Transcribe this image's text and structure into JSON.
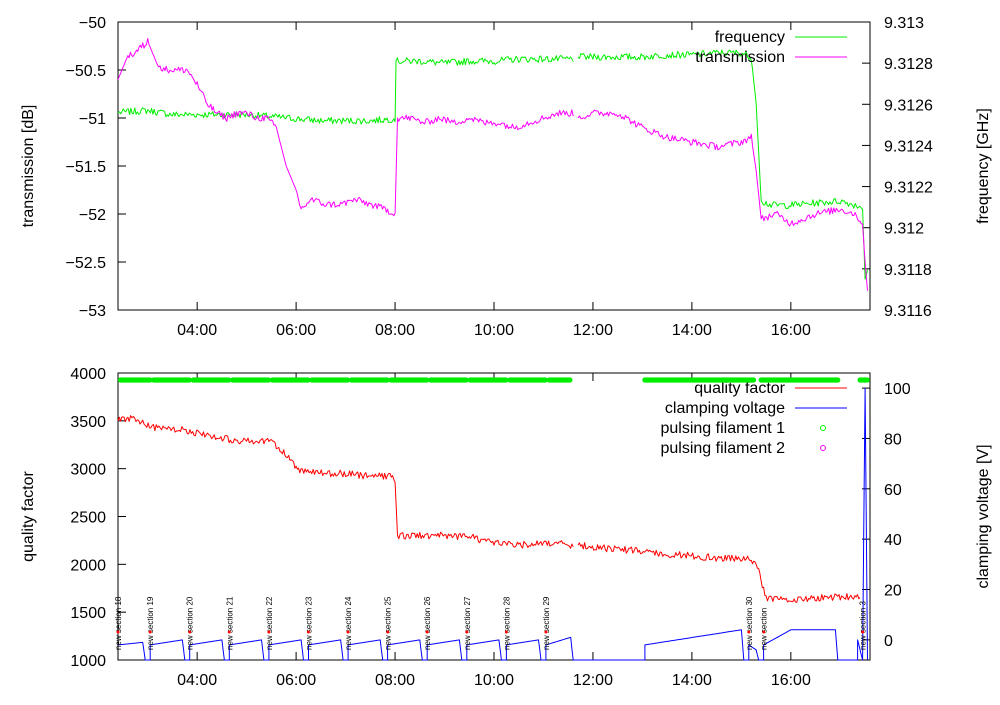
{
  "chart_data": [
    {
      "type": "line",
      "title": "",
      "xlabel": "",
      "x_ticks": [
        "04:00",
        "06:00",
        "08:00",
        "10:00",
        "12:00",
        "14:00",
        "16:00"
      ],
      "x_tick_hours": [
        4,
        6,
        8,
        10,
        12,
        14,
        16
      ],
      "x_range_hours": [
        2.4,
        17.6
      ],
      "ylabel_left": "transmission [dB]",
      "ylim_left": [
        -53,
        -50
      ],
      "yticks_left": [
        "-50",
        "-50.5",
        "-51",
        "-51.5",
        "-52",
        "-52.5",
        "-53"
      ],
      "ylabel_right": "frequency [GHz]",
      "ylim_right": [
        9.3116,
        9.313
      ],
      "yticks_right": [
        "9.313",
        "9.3128",
        "9.3126",
        "9.3124",
        "9.3122",
        "9.312",
        "9.3118",
        "9.3116"
      ],
      "legend_position": "top-right",
      "series": [
        {
          "name": "frequency",
          "axis": "right",
          "color": "#00ee00",
          "points": [
            [
              2.4,
              9.31256
            ],
            [
              3.0,
              9.31257
            ],
            [
              3.5,
              9.31255
            ],
            [
              4.0,
              9.31255
            ],
            [
              4.5,
              9.31255
            ],
            [
              5.0,
              9.31255
            ],
            [
              5.5,
              9.31254
            ],
            [
              6.0,
              9.31253
            ],
            [
              6.5,
              9.31252
            ],
            [
              7.0,
              9.31252
            ],
            [
              7.5,
              9.31252
            ],
            [
              8.0,
              9.31253
            ],
            [
              8.02,
              9.31281
            ],
            [
              8.5,
              9.31281
            ],
            [
              9.0,
              9.3128
            ],
            [
              9.5,
              9.31281
            ],
            [
              10.0,
              9.31281
            ],
            [
              10.5,
              9.31282
            ],
            [
              11.0,
              9.31282
            ],
            [
              11.6,
              9.31282
            ],
            [
              null,
              null
            ],
            [
              11.7,
              9.31283
            ],
            [
              12.0,
              9.31283
            ],
            [
              12.5,
              9.31283
            ],
            [
              13.0,
              9.31283
            ],
            [
              13.5,
              9.31284
            ],
            [
              14.0,
              9.31284
            ],
            [
              14.5,
              9.31285
            ],
            [
              15.0,
              9.31285
            ],
            [
              15.2,
              9.31283
            ],
            [
              15.3,
              9.3126
            ],
            [
              15.4,
              9.31213
            ],
            [
              15.6,
              9.31211
            ],
            [
              16.0,
              9.31211
            ],
            [
              16.5,
              9.31212
            ],
            [
              17.0,
              9.31213
            ],
            [
              17.3,
              9.31211
            ],
            [
              17.45,
              9.3121
            ],
            [
              17.5,
              9.31175
            ],
            [
              17.55,
              9.3118
            ]
          ]
        },
        {
          "name": "transmission",
          "axis": "left",
          "color": "#ff00ff",
          "points": [
            [
              2.4,
              -50.6
            ],
            [
              2.6,
              -50.35
            ],
            [
              2.8,
              -50.3
            ],
            [
              3.0,
              -50.2
            ],
            [
              3.2,
              -50.45
            ],
            [
              3.4,
              -50.5
            ],
            [
              3.6,
              -50.5
            ],
            [
              3.8,
              -50.5
            ],
            [
              4.0,
              -50.65
            ],
            [
              4.2,
              -50.85
            ],
            [
              4.4,
              -50.95
            ],
            [
              4.6,
              -51.0
            ],
            [
              4.8,
              -50.95
            ],
            [
              5.0,
              -50.95
            ],
            [
              5.2,
              -51.0
            ],
            [
              5.4,
              -51.0
            ],
            [
              5.6,
              -51.1
            ],
            [
              5.8,
              -51.5
            ],
            [
              6.0,
              -51.75
            ],
            [
              6.1,
              -51.95
            ],
            [
              6.3,
              -51.85
            ],
            [
              6.6,
              -51.9
            ],
            [
              6.9,
              -51.9
            ],
            [
              7.2,
              -51.85
            ],
            [
              7.5,
              -51.9
            ],
            [
              7.8,
              -51.95
            ],
            [
              8.0,
              -52.0
            ],
            [
              8.05,
              -51.0
            ],
            [
              8.3,
              -51.0
            ],
            [
              8.6,
              -51.05
            ],
            [
              8.9,
              -51.0
            ],
            [
              9.2,
              -51.05
            ],
            [
              9.5,
              -51.0
            ],
            [
              9.8,
              -51.05
            ],
            [
              10.1,
              -51.05
            ],
            [
              10.4,
              -51.1
            ],
            [
              10.7,
              -51.05
            ],
            [
              11.0,
              -51.0
            ],
            [
              11.3,
              -50.95
            ],
            [
              11.6,
              -50.95
            ],
            [
              null,
              null
            ],
            [
              11.7,
              -51.0
            ],
            [
              12.0,
              -50.95
            ],
            [
              12.5,
              -50.95
            ],
            [
              13.0,
              -51.1
            ],
            [
              13.5,
              -51.2
            ],
            [
              14.0,
              -51.25
            ],
            [
              14.5,
              -51.3
            ],
            [
              15.0,
              -51.25
            ],
            [
              15.2,
              -51.2
            ],
            [
              15.3,
              -51.55
            ],
            [
              15.4,
              -52.05
            ],
            [
              15.7,
              -52.0
            ],
            [
              16.0,
              -52.1
            ],
            [
              16.5,
              -52.0
            ],
            [
              17.0,
              -51.95
            ],
            [
              17.3,
              -52.0
            ],
            [
              17.45,
              -52.1
            ],
            [
              17.5,
              -52.5
            ],
            [
              17.55,
              -52.8
            ]
          ]
        }
      ]
    },
    {
      "type": "line",
      "title": "",
      "xlabel": "",
      "x_ticks": [
        "04:00",
        "06:00",
        "08:00",
        "10:00",
        "12:00",
        "14:00",
        "16:00"
      ],
      "x_tick_hours": [
        4,
        6,
        8,
        10,
        12,
        14,
        16
      ],
      "x_range_hours": [
        2.4,
        17.6
      ],
      "ylabel_left": "quality factor",
      "ylim_left": [
        1000,
        4000
      ],
      "yticks_left": [
        "4000",
        "3500",
        "3000",
        "2500",
        "2000",
        "1500",
        "1000"
      ],
      "ylabel_right": "clamping voltage [V]",
      "ylim_right": [
        -8,
        106
      ],
      "yticks_right": [
        "100",
        "80",
        "60",
        "40",
        "20",
        "0"
      ],
      "legend_position": "top-right",
      "series": [
        {
          "name": "quality factor",
          "axis": "left",
          "color": "#ff0000",
          "points": [
            [
              2.4,
              3500
            ],
            [
              2.6,
              3530
            ],
            [
              2.9,
              3480
            ],
            [
              3.2,
              3420
            ],
            [
              3.5,
              3420
            ],
            [
              3.8,
              3400
            ],
            [
              4.1,
              3360
            ],
            [
              4.4,
              3330
            ],
            [
              4.7,
              3300
            ],
            [
              5.0,
              3290
            ],
            [
              5.3,
              3300
            ],
            [
              5.5,
              3270
            ],
            [
              5.7,
              3200
            ],
            [
              5.9,
              3080
            ],
            [
              6.1,
              2970
            ],
            [
              6.4,
              2960
            ],
            [
              6.7,
              2950
            ],
            [
              7.0,
              2950
            ],
            [
              7.3,
              2930
            ],
            [
              7.6,
              2920
            ],
            [
              7.9,
              2930
            ],
            [
              8.0,
              2870
            ],
            [
              8.05,
              2300
            ],
            [
              8.5,
              2300
            ],
            [
              9.0,
              2300
            ],
            [
              9.5,
              2290
            ],
            [
              10.0,
              2220
            ],
            [
              10.5,
              2200
            ],
            [
              11.0,
              2230
            ],
            [
              11.6,
              2200
            ],
            [
              null,
              null
            ],
            [
              11.7,
              2200
            ],
            [
              12.2,
              2170
            ],
            [
              12.7,
              2150
            ],
            [
              13.2,
              2120
            ],
            [
              13.7,
              2100
            ],
            [
              14.2,
              2080
            ],
            [
              14.7,
              2060
            ],
            [
              15.1,
              2060
            ],
            [
              15.3,
              2020
            ],
            [
              15.4,
              1820
            ],
            [
              15.5,
              1650
            ],
            [
              15.8,
              1640
            ],
            [
              16.2,
              1630
            ],
            [
              16.6,
              1650
            ],
            [
              17.0,
              1660
            ],
            [
              17.4,
              1670
            ]
          ]
        },
        {
          "name": "clamping voltage",
          "axis": "right",
          "color": "#0000ff",
          "points": [
            [
              2.4,
              -2
            ],
            [
              2.9,
              -1
            ],
            [
              2.95,
              -8
            ],
            [
              3.05,
              -8
            ],
            [
              3.05,
              -2
            ],
            [
              3.7,
              0
            ],
            [
              3.75,
              -8
            ],
            [
              3.85,
              -8
            ],
            [
              3.85,
              -2
            ],
            [
              4.5,
              0
            ],
            [
              4.55,
              -8
            ],
            [
              4.65,
              -8
            ],
            [
              4.65,
              -2
            ],
            [
              5.3,
              0
            ],
            [
              5.35,
              -8
            ],
            [
              5.45,
              -8
            ],
            [
              5.45,
              -2
            ],
            [
              6.1,
              0
            ],
            [
              6.15,
              -8
            ],
            [
              6.25,
              -8
            ],
            [
              6.25,
              -2
            ],
            [
              6.9,
              0
            ],
            [
              6.95,
              -8
            ],
            [
              7.05,
              -8
            ],
            [
              7.05,
              -2
            ],
            [
              7.7,
              0
            ],
            [
              7.75,
              -8
            ],
            [
              7.85,
              -8
            ],
            [
              7.85,
              -2
            ],
            [
              8.5,
              0
            ],
            [
              8.55,
              -8
            ],
            [
              8.65,
              -8
            ],
            [
              8.65,
              -2
            ],
            [
              9.3,
              0
            ],
            [
              9.35,
              -8
            ],
            [
              9.45,
              -8
            ],
            [
              9.45,
              -2
            ],
            [
              10.1,
              0
            ],
            [
              10.15,
              -8
            ],
            [
              10.25,
              -8
            ],
            [
              10.25,
              -2
            ],
            [
              10.9,
              0
            ],
            [
              10.95,
              -8
            ],
            [
              11.05,
              -8
            ],
            [
              11.05,
              -2
            ],
            [
              11.55,
              1
            ],
            [
              11.6,
              -8
            ],
            [
              13.05,
              -8
            ],
            [
              13.05,
              -2
            ],
            [
              15.0,
              4
            ],
            [
              15.05,
              -8
            ],
            [
              15.15,
              -8
            ],
            [
              15.15,
              -2
            ],
            [
              15.3,
              -4
            ],
            [
              15.35,
              -8
            ],
            [
              15.45,
              -8
            ],
            [
              15.45,
              -2
            ],
            [
              16.0,
              4
            ],
            [
              16.9,
              4
            ],
            [
              16.95,
              -8
            ],
            [
              17.35,
              -8
            ],
            [
              17.35,
              0
            ],
            [
              17.45,
              -8
            ],
            [
              17.5,
              100
            ],
            [
              17.55,
              -8
            ]
          ]
        },
        {
          "name": "pulsing filament 1",
          "axis": "marker",
          "color": "#00ee00",
          "segments_hours": [
            [
              2.45,
              3.05
            ],
            [
              3.12,
              3.85
            ],
            [
              3.92,
              4.65
            ],
            [
              4.72,
              5.45
            ],
            [
              5.52,
              6.25
            ],
            [
              6.32,
              7.05
            ],
            [
              7.12,
              7.85
            ],
            [
              7.92,
              8.65
            ],
            [
              8.72,
              9.45
            ],
            [
              9.52,
              10.25
            ],
            [
              10.32,
              11.05
            ],
            [
              11.12,
              11.55
            ],
            [
              13.05,
              15.25
            ],
            [
              15.4,
              16.95
            ],
            [
              17.4,
              17.55
            ]
          ]
        },
        {
          "name": "pulsing filament 2",
          "axis": "marker",
          "color": "#ff00ff",
          "segments_hours": []
        }
      ],
      "annotations": [
        {
          "text": "new section 18",
          "hour": 2.4
        },
        {
          "text": "new section 19",
          "hour": 3.05
        },
        {
          "text": "new section 20",
          "hour": 3.85
        },
        {
          "text": "new section 21",
          "hour": 4.65
        },
        {
          "text": "new section 22",
          "hour": 5.45
        },
        {
          "text": "new section 23",
          "hour": 6.25
        },
        {
          "text": "new section 24",
          "hour": 7.05
        },
        {
          "text": "new section 25",
          "hour": 7.85
        },
        {
          "text": "new section 26",
          "hour": 8.65
        },
        {
          "text": "new section 27",
          "hour": 9.45
        },
        {
          "text": "new section 28",
          "hour": 10.25
        },
        {
          "text": "new section 29",
          "hour": 11.05
        },
        {
          "text": "new section 30",
          "hour": 15.15
        },
        {
          "text": "new section",
          "hour": 15.45
        },
        {
          "text": "new section 3",
          "hour": 17.45
        }
      ]
    }
  ]
}
